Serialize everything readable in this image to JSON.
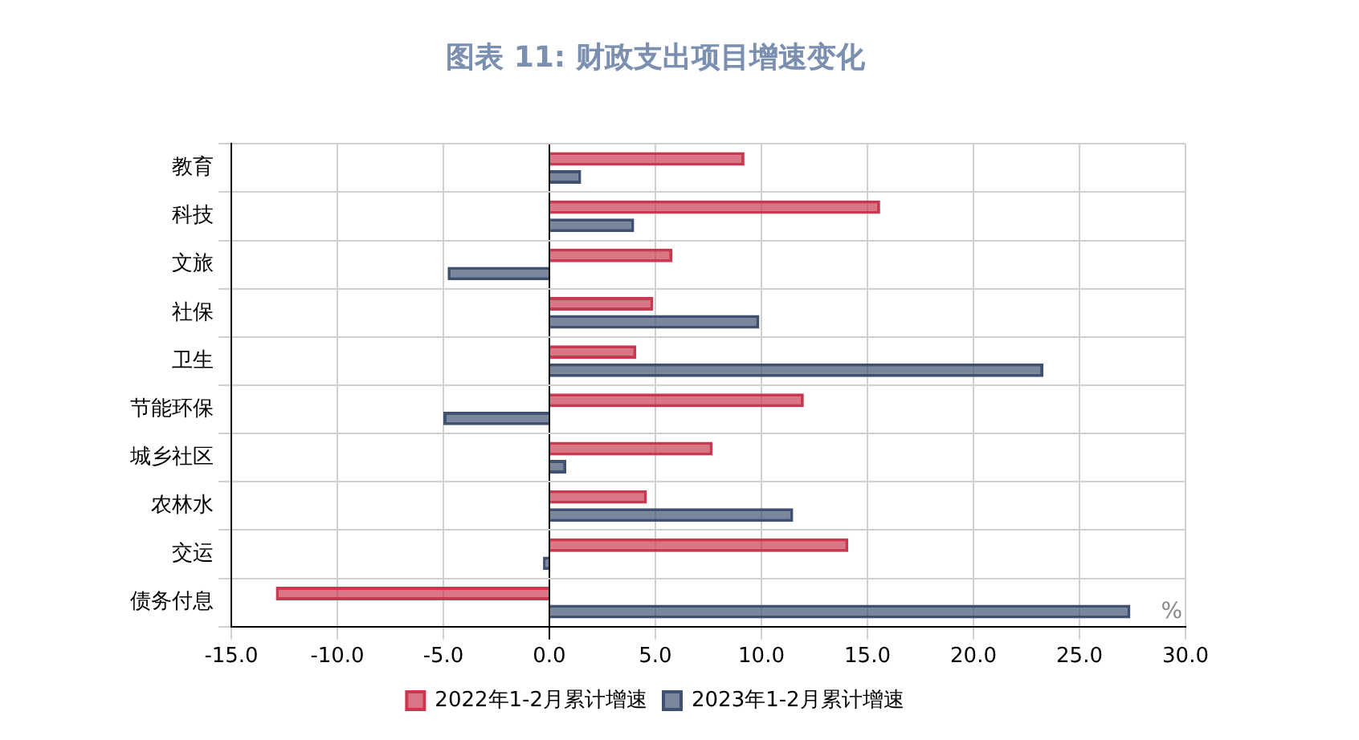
{
  "chart_data": {
    "type": "bar",
    "orientation": "horizontal",
    "title": "图表 11: 财政支出项目增速变化",
    "categories": [
      "教育",
      "科技",
      "文旅",
      "社保",
      "卫生",
      "节能环保",
      "城乡社区",
      "农林水",
      "交运",
      "债务付息"
    ],
    "series": [
      {
        "name": "2022年1-2月累计增速",
        "color": "#c8384e",
        "values": [
          9.2,
          15.6,
          5.8,
          4.9,
          4.1,
          12.0,
          7.7,
          4.6,
          14.1,
          -12.9
        ]
      },
      {
        "name": "2023年1-2月累计增速",
        "color": "#3f5070",
        "values": [
          1.5,
          4.0,
          -4.8,
          9.9,
          23.3,
          -5.0,
          0.8,
          11.5,
          -0.3,
          27.4
        ]
      }
    ],
    "xlim": [
      -15,
      30
    ],
    "xticks": [
      {
        "value": -15,
        "label": "-15.0"
      },
      {
        "value": -10,
        "label": "-10.0"
      },
      {
        "value": -5,
        "label": "-5.0"
      },
      {
        "value": 0,
        "label": "0.0"
      },
      {
        "value": 5,
        "label": "5.0"
      },
      {
        "value": 10,
        "label": "10.0"
      },
      {
        "value": 15,
        "label": "15.0"
      },
      {
        "value": 20,
        "label": "20.0"
      },
      {
        "value": 25,
        "label": "25.0"
      },
      {
        "value": 30,
        "label": "30.0"
      }
    ],
    "annotations": [
      "%"
    ],
    "grid": true,
    "legend": "bottom"
  }
}
